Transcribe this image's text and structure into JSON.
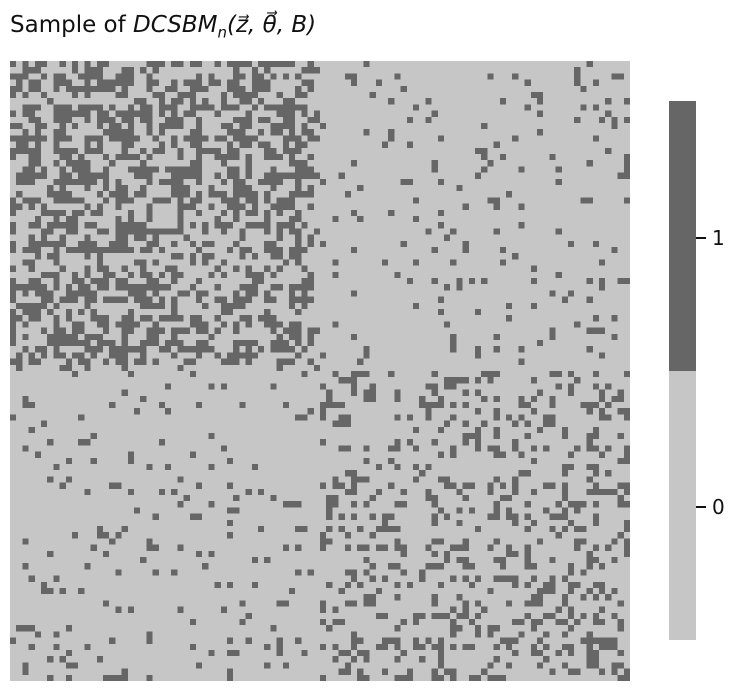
{
  "chart_data": {
    "type": "heatmap",
    "title": "Sample of DCSBM_n(z⃗, θ⃗, B)",
    "title_parts": {
      "prefix": "Sample of ",
      "model": "DCSBM",
      "subscript": "n",
      "args": "(z⃗, θ⃗, B)"
    },
    "matrix_size": 100,
    "values": [
      0,
      1
    ],
    "block_boundary_index": 50,
    "block_edge_density": {
      "top_left": 0.38,
      "top_right": 0.07,
      "bottom_left": 0.07,
      "bottom_right": 0.24
    },
    "colors": {
      "value_0": "#c6c6c6",
      "value_1": "#666666"
    },
    "colorbar": {
      "ticks": [
        {
          "value": 1,
          "label": "1"
        },
        {
          "value": 0,
          "label": "0"
        }
      ]
    },
    "axes_visible": false
  }
}
